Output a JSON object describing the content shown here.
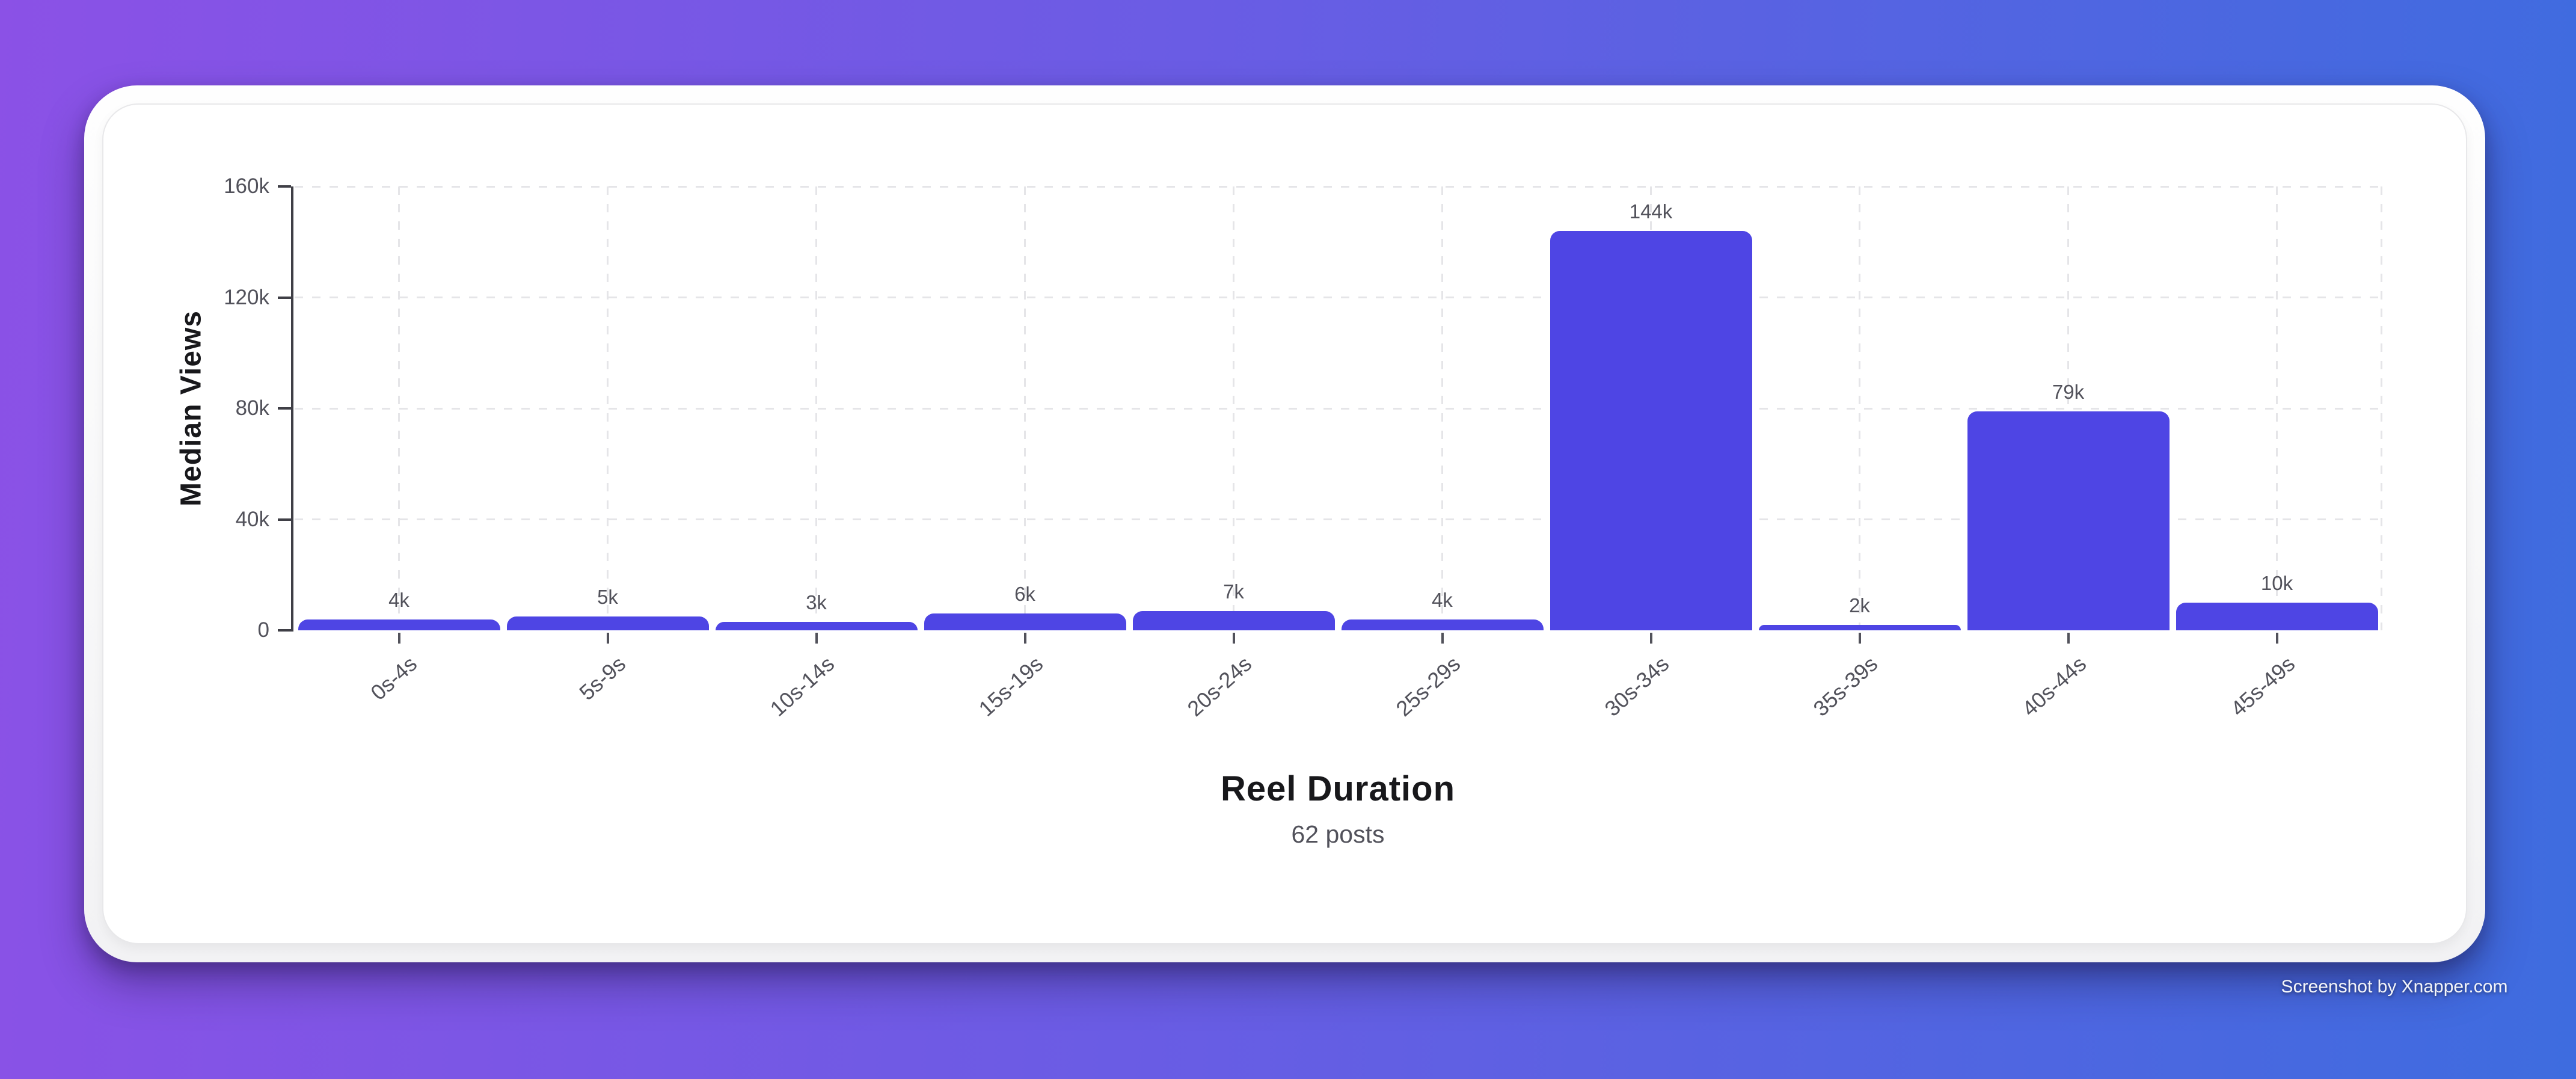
{
  "chart_data": {
    "type": "bar",
    "title": "Reel Duration",
    "subtitle": "62 posts",
    "ylabel": "Median Views",
    "categories": [
      "0s-4s",
      "5s-9s",
      "10s-14s",
      "15s-19s",
      "20s-24s",
      "25s-29s",
      "30s-34s",
      "35s-39s",
      "40s-44s",
      "45s-49s"
    ],
    "values": [
      4000,
      5000,
      3000,
      6000,
      7000,
      4000,
      144000,
      2000,
      79000,
      10000
    ],
    "bar_labels": [
      "4k",
      "5k",
      "3k",
      "6k",
      "7k",
      "4k",
      "144k",
      "2k",
      "79k",
      "10k"
    ],
    "ylim": [
      0,
      160000
    ],
    "yticks": [
      {
        "value": 0,
        "label": "0"
      },
      {
        "value": 40000,
        "label": "40k"
      },
      {
        "value": 80000,
        "label": "80k"
      },
      {
        "value": 120000,
        "label": "120k"
      },
      {
        "value": 160000,
        "label": "160k"
      }
    ],
    "grid": "dashed",
    "legend": "none",
    "bar_color": "#4e45e4"
  },
  "watermark": {
    "text": "Screenshot by Xnapper.com"
  },
  "colors": {
    "background_left": "#8b51e6",
    "background_right": "#3e6cdf",
    "card": "#ffffff",
    "bar": "#4e45e4",
    "gridline": "#e5e5e8",
    "axis": "#3f3f46",
    "title_text": "#18181b",
    "muted_text": "#52525b"
  }
}
